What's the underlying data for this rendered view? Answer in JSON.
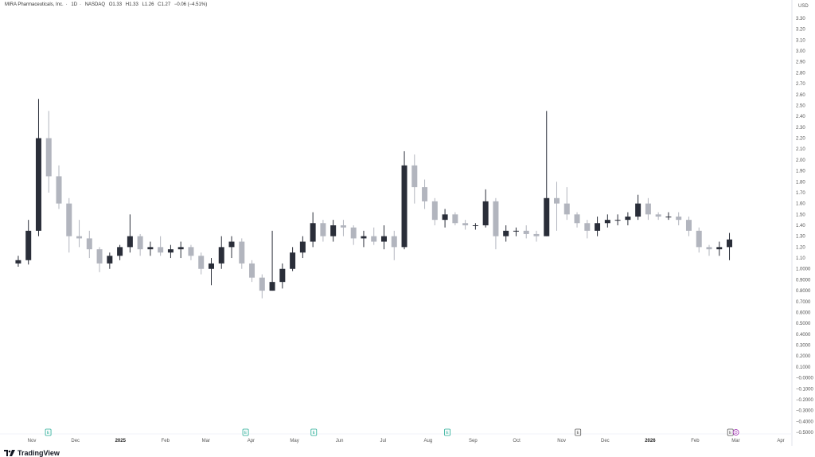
{
  "header": {
    "symbol_name": "MIRA Pharmaceuticals, Inc.",
    "interval": "1D",
    "exchange": "NASDAQ",
    "open": "O1.33",
    "high": "H1.33",
    "low": "L1.26",
    "close": "C1.27",
    "change": "−0.06 (−4.51%)"
  },
  "currency": "USD",
  "logo": "TradingView",
  "colors": {
    "up": "#2a2e39",
    "down": "#b2b5be",
    "earnings": "#22ab94",
    "earnings_upcoming": "#555555",
    "dividend": "#9c27b0"
  },
  "chart_data": {
    "type": "candlestick",
    "title": "MIRA Pharmaceuticals, Inc. · 1D · NASDAQ",
    "ylim": [
      -0.5,
      3.3
    ],
    "yticks": [
      "3.30",
      "3.20",
      "3.10",
      "3.00",
      "2.90",
      "2.80",
      "2.70",
      "2.60",
      "2.50",
      "2.40",
      "2.30",
      "2.20",
      "2.10",
      "2.00",
      "1.90",
      "1.80",
      "1.70",
      "1.60",
      "1.50",
      "1.40",
      "1.30",
      "1.20",
      "1.10",
      "1.0000",
      "0.9000",
      "0.8000",
      "0.7000",
      "0.6000",
      "0.5000",
      "0.4000",
      "0.3000",
      "0.2000",
      "0.1000",
      "−0.0000",
      "−0.1000",
      "−0.2000",
      "−0.3000",
      "−0.4000",
      "−0.5000"
    ],
    "xticks": [
      {
        "label": "Nov",
        "date": "2024-11-01"
      },
      {
        "label": "Dec",
        "date": "2024-12-01"
      },
      {
        "label": "2025",
        "date": "2025-01-01",
        "bold": true
      },
      {
        "label": "Feb",
        "date": "2025-02-01"
      },
      {
        "label": "Mar",
        "date": "2025-03-01"
      },
      {
        "label": "Apr",
        "date": "2025-04-01"
      },
      {
        "label": "May",
        "date": "2025-05-01"
      },
      {
        "label": "Jun",
        "date": "2025-06-01"
      },
      {
        "label": "Jul",
        "date": "2025-07-01"
      },
      {
        "label": "Aug",
        "date": "2025-08-01"
      },
      {
        "label": "Sep",
        "date": "2025-09-01"
      },
      {
        "label": "Oct",
        "date": "2025-10-01"
      },
      {
        "label": "Nov",
        "date": "2025-11-01"
      },
      {
        "label": "Dec",
        "date": "2025-12-01"
      },
      {
        "label": "2026",
        "date": "2026-01-01",
        "bold": true
      },
      {
        "label": "Feb",
        "date": "2026-02-01"
      },
      {
        "label": "Mar",
        "date": "2026-03-01"
      },
      {
        "label": "Apr",
        "date": "2026-04-01"
      }
    ],
    "events": [
      {
        "type": "earnings",
        "label": "E",
        "date": "2024-11-12"
      },
      {
        "type": "earnings",
        "label": "E",
        "date": "2025-03-28"
      },
      {
        "type": "earnings",
        "label": "E",
        "date": "2025-05-14"
      },
      {
        "type": "earnings",
        "label": "E",
        "date": "2025-08-14"
      },
      {
        "type": "earnings_upcoming",
        "label": "E",
        "date": "2025-11-12"
      },
      {
        "type": "earnings_upcoming",
        "label": "E",
        "date": "2026-02-25"
      },
      {
        "type": "dividend",
        "label": "D",
        "date": "2026-02-28"
      }
    ],
    "candles": [
      {
        "d": "2024-10-21",
        "o": 1.05,
        "h": 1.12,
        "l": 1.02,
        "c": 1.08
      },
      {
        "d": "2024-10-28",
        "o": 1.08,
        "h": 1.45,
        "l": 1.04,
        "c": 1.35
      },
      {
        "d": "2024-11-04",
        "o": 1.35,
        "h": 2.56,
        "l": 1.3,
        "c": 2.2
      },
      {
        "d": "2024-11-11",
        "o": 2.2,
        "h": 2.45,
        "l": 1.7,
        "c": 1.85
      },
      {
        "d": "2024-11-18",
        "o": 1.85,
        "h": 1.95,
        "l": 1.55,
        "c": 1.6
      },
      {
        "d": "2024-11-25",
        "o": 1.6,
        "h": 1.65,
        "l": 1.15,
        "c": 1.3
      },
      {
        "d": "2024-12-02",
        "o": 1.3,
        "h": 1.45,
        "l": 1.2,
        "c": 1.28
      },
      {
        "d": "2024-12-09",
        "o": 1.28,
        "h": 1.35,
        "l": 1.1,
        "c": 1.18
      },
      {
        "d": "2024-12-16",
        "o": 1.18,
        "h": 1.2,
        "l": 0.97,
        "c": 1.05
      },
      {
        "d": "2024-12-23",
        "o": 1.05,
        "h": 1.15,
        "l": 1.0,
        "c": 1.12
      },
      {
        "d": "2024-12-30",
        "o": 1.12,
        "h": 1.22,
        "l": 1.08,
        "c": 1.2
      },
      {
        "d": "2025-01-06",
        "o": 1.2,
        "h": 1.5,
        "l": 1.15,
        "c": 1.3
      },
      {
        "d": "2025-01-13",
        "o": 1.3,
        "h": 1.32,
        "l": 1.12,
        "c": 1.18
      },
      {
        "d": "2025-01-20",
        "o": 1.18,
        "h": 1.25,
        "l": 1.12,
        "c": 1.2
      },
      {
        "d": "2025-01-27",
        "o": 1.2,
        "h": 1.3,
        "l": 1.12,
        "c": 1.15
      },
      {
        "d": "2025-02-03",
        "o": 1.15,
        "h": 1.22,
        "l": 1.1,
        "c": 1.18
      },
      {
        "d": "2025-02-10",
        "o": 1.18,
        "h": 1.25,
        "l": 1.1,
        "c": 1.2
      },
      {
        "d": "2025-02-17",
        "o": 1.2,
        "h": 1.22,
        "l": 1.08,
        "c": 1.12
      },
      {
        "d": "2025-02-24",
        "o": 1.12,
        "h": 1.15,
        "l": 0.95,
        "c": 1.0
      },
      {
        "d": "2025-03-03",
        "o": 1.0,
        "h": 1.1,
        "l": 0.85,
        "c": 1.05
      },
      {
        "d": "2025-03-10",
        "o": 1.05,
        "h": 1.3,
        "l": 1.0,
        "c": 1.2
      },
      {
        "d": "2025-03-17",
        "o": 1.2,
        "h": 1.3,
        "l": 1.1,
        "c": 1.25
      },
      {
        "d": "2025-03-24",
        "o": 1.25,
        "h": 1.28,
        "l": 1.0,
        "c": 1.05
      },
      {
        "d": "2025-03-31",
        "o": 1.05,
        "h": 1.08,
        "l": 0.88,
        "c": 0.92
      },
      {
        "d": "2025-04-07",
        "o": 0.92,
        "h": 0.95,
        "l": 0.73,
        "c": 0.8
      },
      {
        "d": "2025-04-14",
        "o": 0.8,
        "h": 1.35,
        "l": 0.8,
        "c": 0.88
      },
      {
        "d": "2025-04-21",
        "o": 0.88,
        "h": 1.05,
        "l": 0.82,
        "c": 1.0
      },
      {
        "d": "2025-04-28",
        "o": 1.0,
        "h": 1.2,
        "l": 0.98,
        "c": 1.15
      },
      {
        "d": "2025-05-05",
        "o": 1.15,
        "h": 1.3,
        "l": 1.1,
        "c": 1.25
      },
      {
        "d": "2025-05-12",
        "o": 1.25,
        "h": 1.52,
        "l": 1.2,
        "c": 1.42
      },
      {
        "d": "2025-05-19",
        "o": 1.42,
        "h": 1.45,
        "l": 1.25,
        "c": 1.3
      },
      {
        "d": "2025-05-26",
        "o": 1.3,
        "h": 1.45,
        "l": 1.25,
        "c": 1.4
      },
      {
        "d": "2025-06-02",
        "o": 1.4,
        "h": 1.45,
        "l": 1.3,
        "c": 1.38
      },
      {
        "d": "2025-06-09",
        "o": 1.38,
        "h": 1.4,
        "l": 1.22,
        "c": 1.28
      },
      {
        "d": "2025-06-16",
        "o": 1.28,
        "h": 1.35,
        "l": 1.2,
        "c": 1.3
      },
      {
        "d": "2025-06-23",
        "o": 1.3,
        "h": 1.38,
        "l": 1.22,
        "c": 1.25
      },
      {
        "d": "2025-06-30",
        "o": 1.25,
        "h": 1.4,
        "l": 1.18,
        "c": 1.3
      },
      {
        "d": "2025-07-07",
        "o": 1.3,
        "h": 1.35,
        "l": 1.08,
        "c": 1.2
      },
      {
        "d": "2025-07-14",
        "o": 1.2,
        "h": 2.08,
        "l": 1.18,
        "c": 1.95
      },
      {
        "d": "2025-07-21",
        "o": 1.95,
        "h": 2.05,
        "l": 1.6,
        "c": 1.75
      },
      {
        "d": "2025-07-28",
        "o": 1.75,
        "h": 1.82,
        "l": 1.55,
        "c": 1.62
      },
      {
        "d": "2025-08-04",
        "o": 1.62,
        "h": 1.65,
        "l": 1.4,
        "c": 1.45
      },
      {
        "d": "2025-08-11",
        "o": 1.45,
        "h": 1.55,
        "l": 1.38,
        "c": 1.5
      },
      {
        "d": "2025-08-18",
        "o": 1.5,
        "h": 1.52,
        "l": 1.4,
        "c": 1.42
      },
      {
        "d": "2025-08-25",
        "o": 1.42,
        "h": 1.45,
        "l": 1.36,
        "c": 1.4
      },
      {
        "d": "2025-09-01",
        "o": 1.4,
        "h": 1.42,
        "l": 1.36,
        "c": 1.4
      },
      {
        "d": "2025-09-08",
        "o": 1.4,
        "h": 1.73,
        "l": 1.38,
        "c": 1.62
      },
      {
        "d": "2025-09-15",
        "o": 1.62,
        "h": 1.65,
        "l": 1.18,
        "c": 1.3
      },
      {
        "d": "2025-09-22",
        "o": 1.3,
        "h": 1.4,
        "l": 1.25,
        "c": 1.35
      },
      {
        "d": "2025-09-29",
        "o": 1.35,
        "h": 1.38,
        "l": 1.3,
        "c": 1.35
      },
      {
        "d": "2025-10-06",
        "o": 1.35,
        "h": 1.4,
        "l": 1.28,
        "c": 1.32
      },
      {
        "d": "2025-10-13",
        "o": 1.32,
        "h": 1.35,
        "l": 1.25,
        "c": 1.3
      },
      {
        "d": "2025-10-20",
        "o": 1.3,
        "h": 2.45,
        "l": 1.3,
        "c": 1.65
      },
      {
        "d": "2025-10-27",
        "o": 1.65,
        "h": 1.8,
        "l": 1.35,
        "c": 1.6
      },
      {
        "d": "2025-11-03",
        "o": 1.6,
        "h": 1.75,
        "l": 1.45,
        "c": 1.5
      },
      {
        "d": "2025-11-10",
        "o": 1.5,
        "h": 1.52,
        "l": 1.38,
        "c": 1.42
      },
      {
        "d": "2025-11-17",
        "o": 1.42,
        "h": 1.45,
        "l": 1.28,
        "c": 1.35
      },
      {
        "d": "2025-11-24",
        "o": 1.35,
        "h": 1.48,
        "l": 1.3,
        "c": 1.42
      },
      {
        "d": "2025-12-01",
        "o": 1.42,
        "h": 1.5,
        "l": 1.38,
        "c": 1.45
      },
      {
        "d": "2025-12-08",
        "o": 1.45,
        "h": 1.5,
        "l": 1.4,
        "c": 1.45
      },
      {
        "d": "2025-12-15",
        "o": 1.45,
        "h": 1.52,
        "l": 1.4,
        "c": 1.48
      },
      {
        "d": "2025-12-22",
        "o": 1.48,
        "h": 1.68,
        "l": 1.45,
        "c": 1.6
      },
      {
        "d": "2025-12-29",
        "o": 1.6,
        "h": 1.65,
        "l": 1.45,
        "c": 1.5
      },
      {
        "d": "2026-01-05",
        "o": 1.5,
        "h": 1.52,
        "l": 1.45,
        "c": 1.48
      },
      {
        "d": "2026-01-12",
        "o": 1.48,
        "h": 1.52,
        "l": 1.45,
        "c": 1.48
      },
      {
        "d": "2026-01-19",
        "o": 1.48,
        "h": 1.52,
        "l": 1.4,
        "c": 1.45
      },
      {
        "d": "2026-01-26",
        "o": 1.45,
        "h": 1.48,
        "l": 1.3,
        "c": 1.35
      },
      {
        "d": "2026-02-02",
        "o": 1.35,
        "h": 1.38,
        "l": 1.15,
        "c": 1.2
      },
      {
        "d": "2026-02-09",
        "o": 1.2,
        "h": 1.22,
        "l": 1.12,
        "c": 1.18
      },
      {
        "d": "2026-02-16",
        "o": 1.18,
        "h": 1.25,
        "l": 1.12,
        "c": 1.2
      },
      {
        "d": "2026-02-23",
        "o": 1.2,
        "h": 1.33,
        "l": 1.08,
        "c": 1.27
      }
    ]
  }
}
